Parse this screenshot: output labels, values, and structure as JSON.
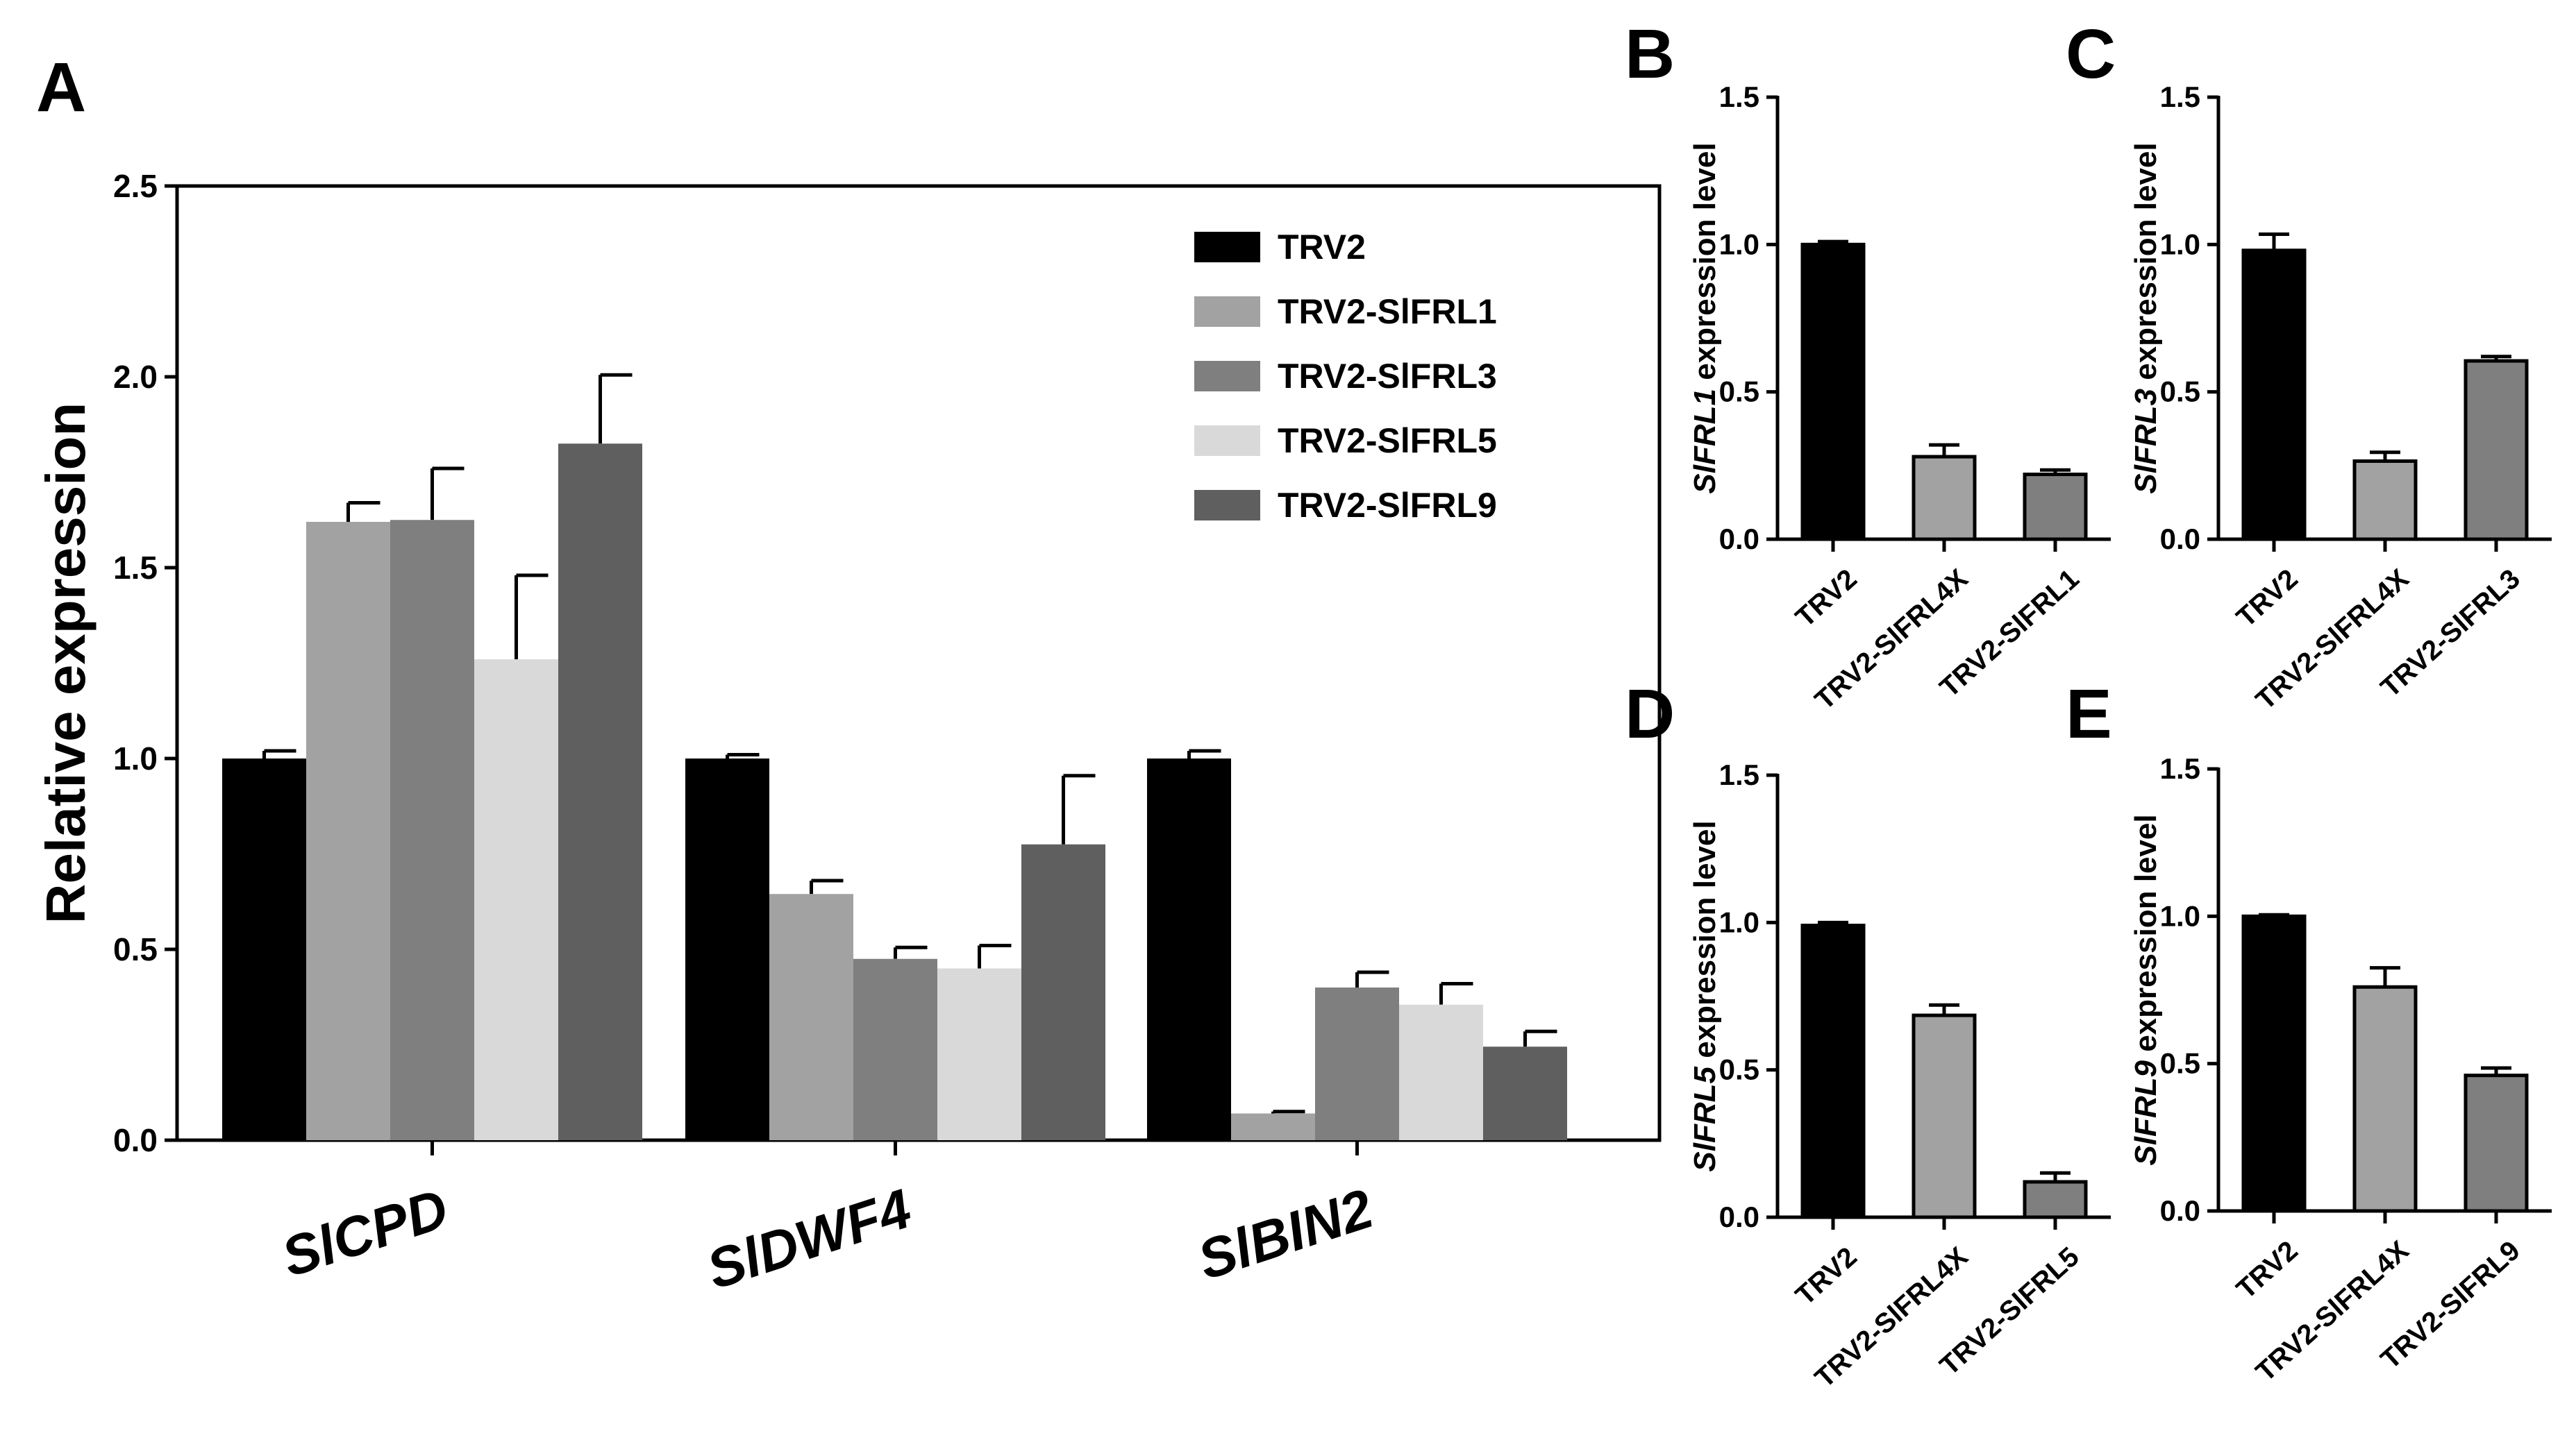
{
  "chart_data": [
    {
      "panel": "A",
      "type": "bar",
      "ylabel": "Relative expression",
      "ylim": [
        0,
        2.5
      ],
      "yticks": [
        "0.0",
        "0.5",
        "1.0",
        "1.5",
        "2.0",
        "2.5"
      ],
      "categories": [
        "SlCPD",
        "SlDWF4",
        "SlBIN2"
      ],
      "series": [
        {
          "name": "TRV2",
          "color": "#000000",
          "values": [
            1.0,
            1.0,
            1.0
          ],
          "errors": [
            0.02,
            0.01,
            0.02
          ]
        },
        {
          "name": "TRV2-SlFRL1",
          "color": "#a2a2a2",
          "values": [
            1.62,
            0.645,
            0.07
          ],
          "errors": [
            0.05,
            0.035,
            0.005
          ]
        },
        {
          "name": "TRV2-SlFRL3",
          "color": "#7f7f7f",
          "values": [
            1.625,
            0.475,
            0.4
          ],
          "errors": [
            0.135,
            0.03,
            0.04
          ]
        },
        {
          "name": "TRV2-SlFRL5",
          "color": "#d9d9d9",
          "values": [
            1.26,
            0.45,
            0.355
          ],
          "errors": [
            0.22,
            0.06,
            0.055
          ]
        },
        {
          "name": "TRV2-SlFRL9",
          "color": "#5f5f5f",
          "values": [
            1.825,
            0.775,
            0.245
          ],
          "errors": [
            0.18,
            0.18,
            0.04
          ]
        }
      ]
    },
    {
      "panel": "B",
      "type": "bar",
      "ylabel_gene": "SlFRL1",
      "ylabel_rest": " expression level",
      "ylim": [
        0,
        1.5
      ],
      "yticks": [
        "0.0",
        "0.5",
        "1.0",
        "1.5"
      ],
      "categories": [
        "TRV2",
        "TRV2-SlFRL4X",
        "TRV2-SlFRL1"
      ],
      "values": [
        1.0,
        0.28,
        0.22
      ],
      "errors": [
        0.01,
        0.04,
        0.015
      ],
      "colors": [
        "#000000",
        "#a2a2a2",
        "#7f7f7f"
      ]
    },
    {
      "panel": "C",
      "type": "bar",
      "ylabel_gene": "SlFRL3",
      "ylabel_rest": " expression level",
      "ylim": [
        0,
        1.5
      ],
      "yticks": [
        "0.0",
        "0.5",
        "1.0",
        "1.5"
      ],
      "categories": [
        "TRV2",
        "TRV2-SlFRL4X",
        "TRV2-SlFRL3"
      ],
      "values": [
        0.98,
        0.265,
        0.605
      ],
      "errors": [
        0.055,
        0.03,
        0.015
      ],
      "colors": [
        "#000000",
        "#a2a2a2",
        "#7f7f7f"
      ]
    },
    {
      "panel": "D",
      "type": "bar",
      "ylabel_gene": "SlFRL5",
      "ylabel_rest": " expression level",
      "ylim": [
        0,
        1.5
      ],
      "yticks": [
        "0.0",
        "0.5",
        "1.0",
        "1.5"
      ],
      "categories": [
        "TRV2",
        "TRV2-SlFRL4X",
        "TRV2-SlFRL5"
      ],
      "values": [
        0.99,
        0.685,
        0.12
      ],
      "errors": [
        0.01,
        0.035,
        0.03
      ],
      "colors": [
        "#000000",
        "#a2a2a2",
        "#7f7f7f"
      ]
    },
    {
      "panel": "E",
      "type": "bar",
      "ylabel_gene": "SlFRL9",
      "ylabel_rest": " expression level",
      "ylim": [
        0,
        1.5
      ],
      "yticks": [
        "0.0",
        "0.5",
        "1.0",
        "1.5"
      ],
      "categories": [
        "TRV2",
        "TRV2-SlFRL4X",
        "TRV2-SlFRL9"
      ],
      "values": [
        1.0,
        0.76,
        0.46
      ],
      "errors": [
        0.005,
        0.065,
        0.025
      ],
      "colors": [
        "#000000",
        "#a2a2a2",
        "#7f7f7f"
      ]
    }
  ]
}
